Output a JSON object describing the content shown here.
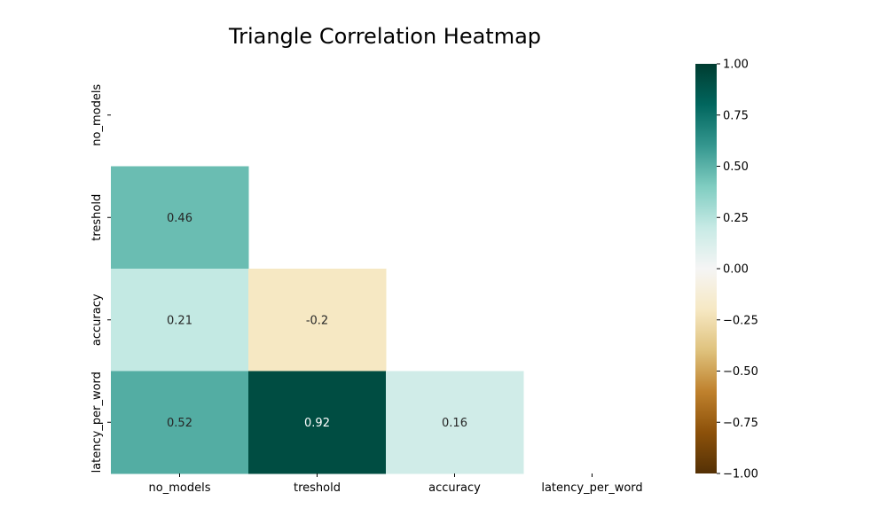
{
  "chart_data": {
    "type": "heatmap",
    "title": "Triangle Correlation Heatmap",
    "xlabel": "",
    "ylabel": "",
    "x_categories": [
      "no_models",
      "treshold",
      "accuracy",
      "latency_per_word"
    ],
    "y_categories": [
      "no_models",
      "treshold",
      "accuracy",
      "latency_per_word"
    ],
    "mask": "upper-triangle-including-diagonal",
    "cells": [
      {
        "row": "treshold",
        "col": "no_models",
        "value": 0.46,
        "label": "0.46"
      },
      {
        "row": "accuracy",
        "col": "no_models",
        "value": 0.21,
        "label": "0.21"
      },
      {
        "row": "accuracy",
        "col": "treshold",
        "value": -0.2,
        "label": "-0.2"
      },
      {
        "row": "latency_per_word",
        "col": "no_models",
        "value": 0.52,
        "label": "0.52"
      },
      {
        "row": "latency_per_word",
        "col": "treshold",
        "value": 0.92,
        "label": "0.92"
      },
      {
        "row": "latency_per_word",
        "col": "accuracy",
        "value": 0.16,
        "label": "0.16"
      }
    ],
    "colorbar": {
      "colormap": "BrBG",
      "range": [
        -1.0,
        1.0
      ],
      "ticks": [
        -1.0,
        -0.75,
        -0.5,
        -0.25,
        0.0,
        0.25,
        0.5,
        0.75,
        1.0
      ],
      "tick_labels": [
        "−1.00",
        "−0.75",
        "−0.50",
        "−0.25",
        "0.00",
        "0.25",
        "0.50",
        "0.75",
        "1.00"
      ],
      "position": "right"
    },
    "colors": {
      "dark_annotation": "#ffffff",
      "light_annotation": "#262626"
    }
  }
}
